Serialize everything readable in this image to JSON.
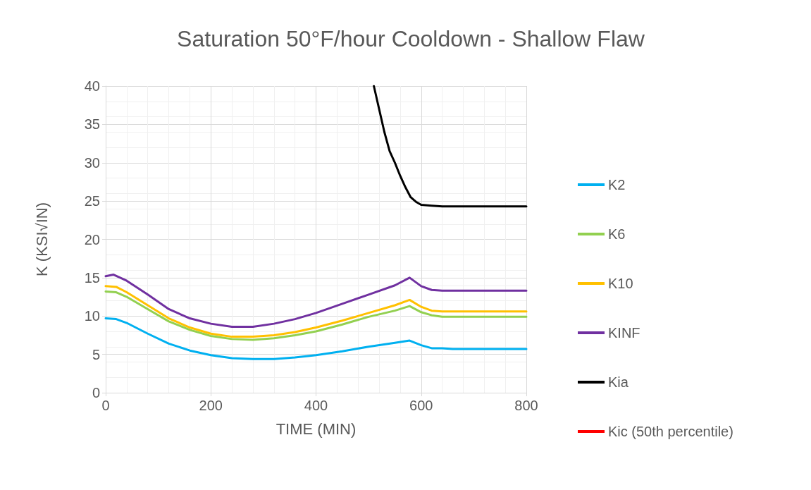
{
  "chart_data": {
    "type": "line",
    "title": "Saturation 50°F/hour Cooldown - Shallow Flaw",
    "xlabel": "TIME (MIN)",
    "ylabel": "K (KSI√IN)",
    "xlim": [
      0,
      800
    ],
    "xticks": [
      0,
      200,
      400,
      600,
      800
    ],
    "ylim": [
      0,
      40
    ],
    "yticks": [
      0,
      5,
      10,
      15,
      20,
      25,
      30,
      35,
      40
    ],
    "grid": true,
    "legend": "right",
    "marker": "none",
    "line_style": "solid",
    "series": [
      {
        "name": "K2",
        "color": "#00b0f0",
        "x": [
          0,
          20,
          40,
          80,
          120,
          160,
          200,
          240,
          280,
          320,
          360,
          400,
          450,
          500,
          550,
          578,
          600,
          620,
          640,
          660,
          800
        ],
        "values": [
          9.7,
          9.6,
          9.1,
          7.7,
          6.4,
          5.5,
          4.9,
          4.5,
          4.4,
          4.4,
          4.6,
          4.9,
          5.4,
          6.0,
          6.5,
          6.8,
          6.2,
          5.8,
          5.8,
          5.7,
          5.7
        ]
      },
      {
        "name": "K6",
        "color": "#92d050",
        "x": [
          0,
          20,
          40,
          80,
          120,
          160,
          200,
          240,
          280,
          320,
          360,
          400,
          450,
          500,
          550,
          578,
          600,
          620,
          640,
          800
        ],
        "values": [
          13.2,
          13.1,
          12.5,
          10.9,
          9.3,
          8.2,
          7.4,
          7.0,
          6.9,
          7.1,
          7.5,
          8.0,
          8.9,
          9.9,
          10.7,
          11.3,
          10.5,
          10.1,
          9.9,
          9.9
        ]
      },
      {
        "name": "K10",
        "color": "#ffc000",
        "x": [
          0,
          20,
          40,
          80,
          120,
          160,
          200,
          240,
          280,
          320,
          360,
          400,
          450,
          500,
          550,
          578,
          600,
          620,
          640,
          800
        ],
        "values": [
          13.9,
          13.8,
          13.1,
          11.4,
          9.7,
          8.5,
          7.7,
          7.3,
          7.3,
          7.5,
          7.9,
          8.5,
          9.4,
          10.4,
          11.4,
          12.1,
          11.2,
          10.7,
          10.6,
          10.6
        ]
      },
      {
        "name": "KINF",
        "color": "#7030a0",
        "x": [
          0,
          15,
          40,
          80,
          120,
          160,
          200,
          240,
          280,
          320,
          360,
          400,
          450,
          500,
          550,
          578,
          600,
          620,
          640,
          800
        ],
        "values": [
          15.2,
          15.4,
          14.6,
          12.8,
          10.9,
          9.7,
          9.0,
          8.6,
          8.6,
          9.0,
          9.6,
          10.4,
          11.6,
          12.8,
          14.0,
          15.0,
          13.9,
          13.4,
          13.3,
          13.3
        ]
      },
      {
        "name": "Kia",
        "color": "#000000",
        "x": [
          510,
          520,
          530,
          540,
          550,
          560,
          570,
          580,
          590,
          600,
          620,
          640,
          800
        ],
        "values": [
          40,
          37,
          34,
          31.5,
          30,
          28.3,
          26.8,
          25.5,
          24.9,
          24.5,
          24.4,
          24.3,
          24.3
        ]
      },
      {
        "name": "Kic (50th percentile)",
        "color": "#ff0000"
      }
    ]
  }
}
